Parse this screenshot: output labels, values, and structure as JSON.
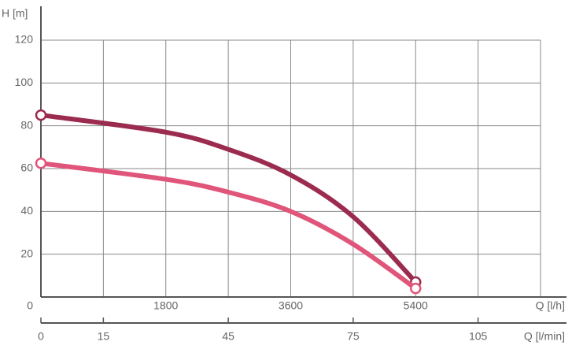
{
  "chart_data": {
    "type": "line",
    "ylabel": "H [m]",
    "xlabel": "Q [l/h]",
    "x2label": "Q [l/min]",
    "x": [
      0,
      1800,
      2700,
      3600,
      4500,
      5400
    ],
    "series": [
      {
        "color": "#9b2c4f",
        "values": [
          85,
          77,
          69,
          57,
          37.5,
          7
        ]
      },
      {
        "color": "#e0557a",
        "values": [
          62.5,
          55,
          49,
          40,
          24.7,
          4
        ]
      }
    ],
    "xlim": [
      0,
      7200
    ],
    "xticks": [
      0,
      1800,
      3600,
      5400
    ],
    "xgrid": [
      0,
      900,
      1800,
      2700,
      3600,
      4500,
      5400,
      6300,
      7200
    ],
    "x2lim": [
      0,
      120
    ],
    "x2ticks": [
      0,
      15,
      45,
      75,
      105
    ],
    "ylim": [
      0,
      120
    ],
    "yticks": [
      20,
      40,
      60,
      80,
      100,
      120
    ],
    "grid": true,
    "endpoint_markers": true
  }
}
